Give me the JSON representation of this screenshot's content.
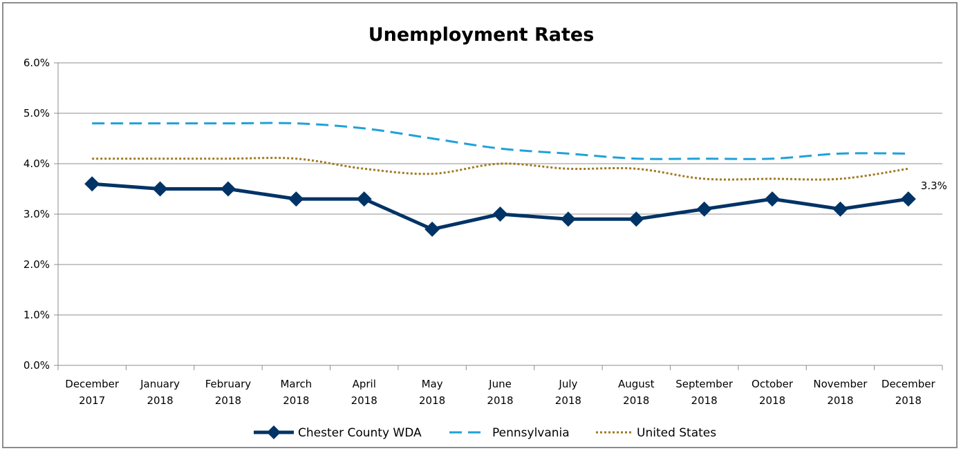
{
  "chart_data": {
    "type": "line",
    "title": "Unemployment Rates",
    "xlabel": "",
    "ylabel": "",
    "categories": [
      [
        "December",
        "2017"
      ],
      [
        "January",
        "2018"
      ],
      [
        "February",
        "2018"
      ],
      [
        "March",
        "2018"
      ],
      [
        "April",
        "2018"
      ],
      [
        "May",
        "2018"
      ],
      [
        "June",
        "2018"
      ],
      [
        "July",
        "2018"
      ],
      [
        "August",
        "2018"
      ],
      [
        "September",
        "2018"
      ],
      [
        "October",
        "2018"
      ],
      [
        "November",
        "2018"
      ],
      [
        "December",
        "2018"
      ]
    ],
    "ylim": [
      0,
      6.0
    ],
    "yticks": [
      "0.0%",
      "1.0%",
      "2.0%",
      "3.0%",
      "4.0%",
      "5.0%",
      "6.0%"
    ],
    "grid": "horizontal",
    "legend_position": "bottom",
    "series": [
      {
        "name": "Chester County WDA",
        "values": [
          3.6,
          3.5,
          3.5,
          3.3,
          3.3,
          2.7,
          3.0,
          2.9,
          2.9,
          3.1,
          3.3,
          3.1,
          3.3
        ],
        "color": "#003366",
        "style": "solid-diamond"
      },
      {
        "name": "Pennsylvania",
        "values": [
          4.8,
          4.8,
          4.8,
          4.8,
          4.7,
          4.5,
          4.3,
          4.2,
          4.1,
          4.1,
          4.1,
          4.2,
          4.2
        ],
        "color": "#1ea1d9",
        "style": "dashed"
      },
      {
        "name": "United States",
        "values": [
          4.1,
          4.1,
          4.1,
          4.1,
          3.9,
          3.8,
          4.0,
          3.9,
          3.9,
          3.7,
          3.7,
          3.7,
          3.9
        ],
        "color": "#a07820",
        "style": "dotted"
      }
    ],
    "annotations": [
      {
        "series": "Chester County WDA",
        "index": 12,
        "text": "3.3%"
      }
    ]
  }
}
